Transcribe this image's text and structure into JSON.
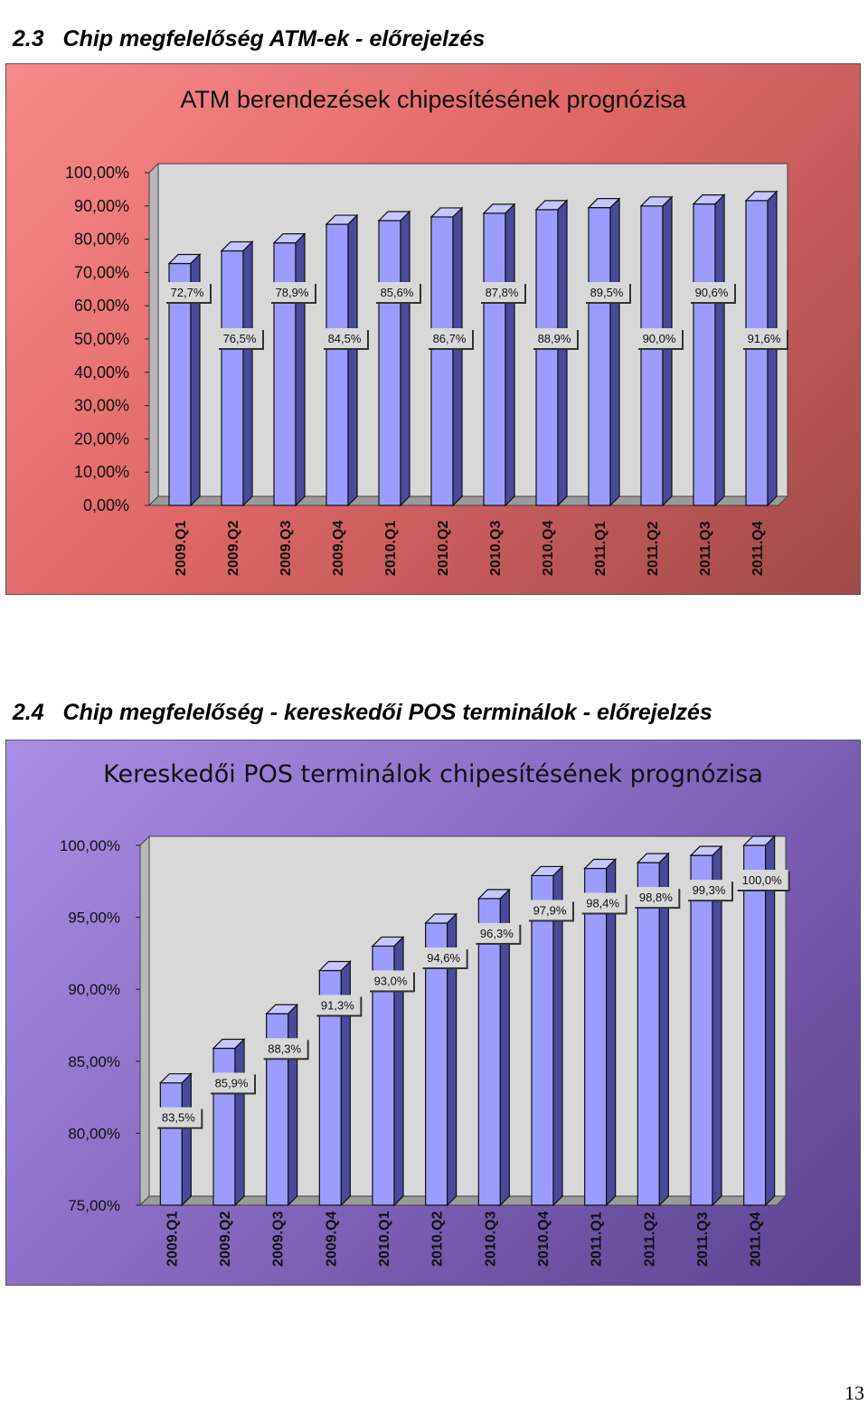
{
  "sections": [
    {
      "number": "2.3",
      "title": "Chip megfelelőség ATM-ek - előrejelzés"
    },
    {
      "number": "2.4",
      "title": "Chip megfelelőség - kereskedői POS terminálok - előrejelzés"
    }
  ],
  "page_number": "13",
  "chart_data": [
    {
      "type": "bar",
      "title": "ATM berendezések chipesítésének prognózisa",
      "categories": [
        "2009.Q1",
        "2009.Q2",
        "2009.Q3",
        "2009.Q4",
        "2010.Q1",
        "2010.Q2",
        "2010.Q3",
        "2010.Q4",
        "2011.Q1",
        "2011.Q2",
        "2011.Q3",
        "2011.Q4"
      ],
      "values": [
        72.7,
        76.5,
        78.9,
        84.5,
        85.6,
        86.7,
        87.8,
        88.9,
        89.5,
        90.0,
        90.6,
        91.6
      ],
      "data_labels": [
        "72,7%",
        "76,5%",
        "78,9%",
        "84,5%",
        "85,6%",
        "86,7%",
        "87,8%",
        "88,9%",
        "89,5%",
        "90,0%",
        "90,6%",
        "91,6%"
      ],
      "yticks": [
        "0,00%",
        "10,00%",
        "20,00%",
        "30,00%",
        "40,00%",
        "50,00%",
        "60,00%",
        "70,00%",
        "80,00%",
        "90,00%",
        "100,00%"
      ],
      "ylim": [
        0,
        100
      ],
      "xlabel": "",
      "ylabel": "",
      "grid": false,
      "colors": {
        "background": "#e86a6a",
        "bar": "#9c9cff",
        "bar_top": "#c6c6ff",
        "bar_side": "#4a4a9c",
        "wall": "#d8d8d8"
      }
    },
    {
      "type": "bar",
      "title": "Kereskedői POS terminálok chipesítésének prognózisa",
      "categories": [
        "2009.Q1",
        "2009.Q2",
        "2009.Q3",
        "2009.Q4",
        "2010.Q1",
        "2010.Q2",
        "2010.Q3",
        "2010.Q4",
        "2011.Q1",
        "2011.Q2",
        "2011.Q3",
        "2011.Q4"
      ],
      "values": [
        83.5,
        85.9,
        88.3,
        91.3,
        93.0,
        94.6,
        96.3,
        97.9,
        98.4,
        98.8,
        99.3,
        100.0
      ],
      "data_labels": [
        "83,5%",
        "85,9%",
        "88,3%",
        "91,3%",
        "93,0%",
        "94,6%",
        "96,3%",
        "97,9%",
        "98,4%",
        "98,8%",
        "99,3%",
        "100,0%"
      ],
      "yticks": [
        "75,00%",
        "80,00%",
        "85,00%",
        "90,00%",
        "95,00%",
        "100,00%"
      ],
      "ylim": [
        75,
        100
      ],
      "xlabel": "",
      "ylabel": "",
      "grid": false,
      "colors": {
        "background": "#8a6cc4",
        "bar": "#9c9cff",
        "bar_top": "#c6c6ff",
        "bar_side": "#4a4a9c",
        "wall": "#d8d8d8"
      }
    }
  ]
}
